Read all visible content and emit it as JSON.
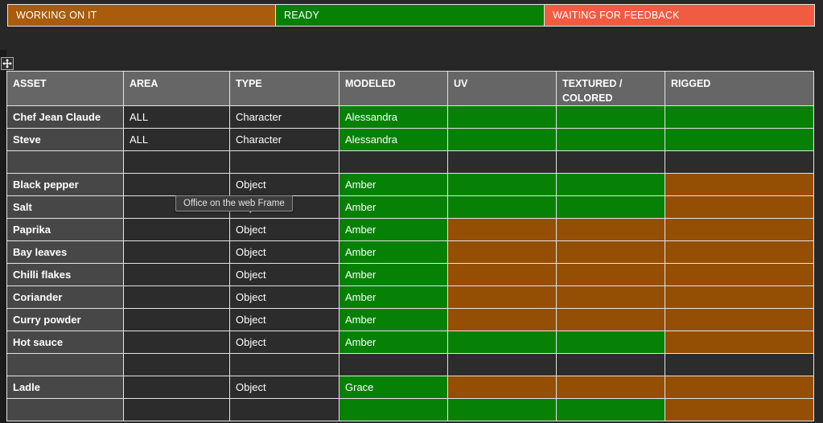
{
  "colors": {
    "background": "#272727",
    "grid": "#e4e4e4",
    "header_bg": "#666666",
    "asset_col_bg": "#474747",
    "cell_dark": "#2c2c2c",
    "ready_green": "#068106",
    "working_orange": "#944f04",
    "legend_orange": "#a85c0c",
    "feedback_red": "#f15b41",
    "text": "#ffffff"
  },
  "legend": [
    {
      "label": "WORKING ON IT",
      "color_key": "legend_orange"
    },
    {
      "label": "READY",
      "color_key": "ready_green"
    },
    {
      "label": "WAITING FOR FEEDBACK",
      "color_key": "feedback_red"
    }
  ],
  "tooltip": {
    "text": "Office on the web Frame"
  },
  "icons": {
    "move_handle": "move-icon"
  },
  "table": {
    "columns": [
      "ASSET",
      "AREA",
      "TYPE",
      "MODELED",
      "UV",
      "TEXTURED / COLORED",
      "RIGGED"
    ],
    "rows": [
      {
        "asset": "Chef Jean Claude",
        "area": "ALL",
        "type": "Character",
        "modeled": {
          "text": "Alessandra",
          "status": "ready"
        },
        "uv": "ready",
        "textured": "ready",
        "rigged": "ready"
      },
      {
        "asset": "Steve",
        "area": "ALL",
        "type": "Character",
        "modeled": {
          "text": "Alessandra",
          "status": "ready"
        },
        "uv": "ready",
        "textured": "ready",
        "rigged": "ready"
      },
      {
        "asset": "",
        "area": "",
        "type": "",
        "modeled": {
          "text": "",
          "status": "none"
        },
        "uv": "none",
        "textured": "none",
        "rigged": "none"
      },
      {
        "asset": "Black pepper",
        "area": "",
        "type": "Object",
        "modeled": {
          "text": "Amber",
          "status": "ready"
        },
        "uv": "ready",
        "textured": "ready",
        "rigged": "working"
      },
      {
        "asset": "Salt",
        "area": "",
        "type": "Object",
        "modeled": {
          "text": "Amber",
          "status": "ready"
        },
        "uv": "ready",
        "textured": "ready",
        "rigged": "working"
      },
      {
        "asset": "Paprika",
        "area": "",
        "type": "Object",
        "modeled": {
          "text": "Amber",
          "status": "ready"
        },
        "uv": "working",
        "textured": "working",
        "rigged": "working"
      },
      {
        "asset": "Bay leaves",
        "area": "",
        "type": "Object",
        "modeled": {
          "text": "Amber",
          "status": "ready"
        },
        "uv": "working",
        "textured": "working",
        "rigged": "working"
      },
      {
        "asset": "Chilli flakes",
        "area": "",
        "type": "Object",
        "modeled": {
          "text": "Amber",
          "status": "ready"
        },
        "uv": "working",
        "textured": "working",
        "rigged": "working"
      },
      {
        "asset": "Coriander",
        "area": "",
        "type": "Object",
        "modeled": {
          "text": "Amber",
          "status": "ready"
        },
        "uv": "working",
        "textured": "working",
        "rigged": "working"
      },
      {
        "asset": "Curry powder",
        "area": "",
        "type": "Object",
        "modeled": {
          "text": "Amber",
          "status": "ready"
        },
        "uv": "working",
        "textured": "working",
        "rigged": "working"
      },
      {
        "asset": "Hot sauce",
        "area": "",
        "type": "Object",
        "modeled": {
          "text": "Amber",
          "status": "ready"
        },
        "uv": "ready",
        "textured": "ready",
        "rigged": "working"
      },
      {
        "asset": "",
        "area": "",
        "type": "",
        "modeled": {
          "text": "",
          "status": "none"
        },
        "uv": "none",
        "textured": "none",
        "rigged": "none"
      },
      {
        "asset": "Ladle",
        "area": "",
        "type": "Object",
        "modeled": {
          "text": "Grace",
          "status": "ready"
        },
        "uv": "working",
        "textured": "working",
        "rigged": "working"
      },
      {
        "asset": "",
        "area": "",
        "type": "",
        "modeled": {
          "text": "",
          "status": "ready"
        },
        "uv": "ready",
        "textured": "ready",
        "rigged": "working"
      }
    ]
  }
}
